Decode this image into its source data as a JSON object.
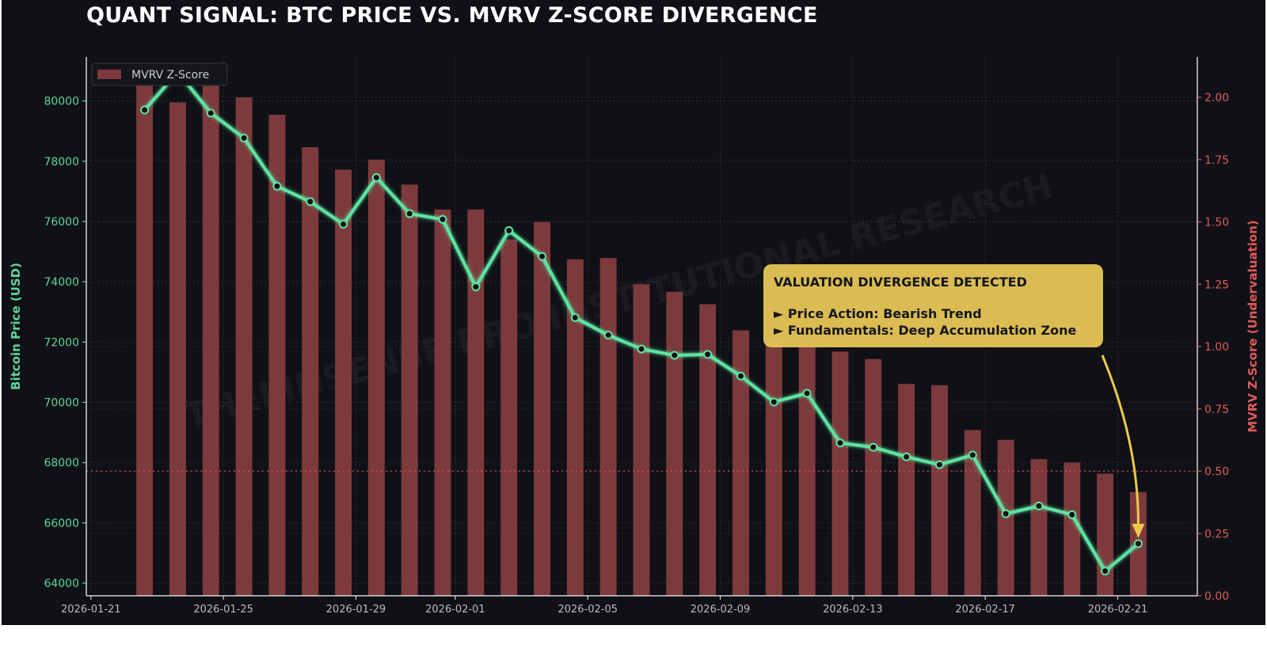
{
  "title": "QUANT SIGNAL: BTC PRICE VS. MVRV Z-SCORE DIVERGENCE",
  "watermark": "THEFINSENSE PRO INSTITUTIONAL RESEARCH",
  "colors": {
    "background": "#101116",
    "price_line": "#5fe3a1",
    "bars": "#7d3a3d",
    "left_axis": "#5fd39a",
    "right_axis": "#e05a5a",
    "annotation_bg": "#e2c256",
    "arrow": "#ecc94b",
    "threshold": "#d9534f"
  },
  "chart_data": {
    "type": "bar+line",
    "title": "QUANT SIGNAL: BTC PRICE VS. MVRV Z-SCORE DIVERGENCE",
    "x": [
      "2026-01-22",
      "2026-01-23",
      "2026-01-24",
      "2026-01-25",
      "2026-01-26",
      "2026-01-27",
      "2026-01-28",
      "2026-01-29",
      "2026-01-30",
      "2026-01-31",
      "2026-02-01",
      "2026-02-02",
      "2026-02-03",
      "2026-02-04",
      "2026-02-05",
      "2026-02-06",
      "2026-02-07",
      "2026-02-08",
      "2026-02-09",
      "2026-02-10",
      "2026-02-11",
      "2026-02-12",
      "2026-02-13",
      "2026-02-14",
      "2026-02-15",
      "2026-02-16",
      "2026-02-17",
      "2026-02-18",
      "2026-02-19",
      "2026-02-20",
      "2026-02-21"
    ],
    "x_tick_labels": [
      "2026-01-21",
      "2026-01-25",
      "2026-01-29",
      "2026-02-01",
      "2026-02-05",
      "2026-02-09",
      "2026-02-13",
      "2026-02-17",
      "2026-02-21"
    ],
    "xlim": [
      "2026-01-20T20:40",
      "2026-02-23T09:40"
    ],
    "series": [
      {
        "type": "line",
        "axis": "left",
        "values": [
          79700,
          80960,
          79600,
          78770,
          77170,
          76660,
          75910,
          77460,
          76260,
          76070,
          73830,
          75700,
          74840,
          72810,
          72230,
          71770,
          71560,
          71590,
          70870,
          70010,
          70300,
          68650,
          68510,
          68190,
          67930,
          68250,
          66300,
          66560,
          66270,
          64400,
          65310
        ]
      },
      {
        "type": "bar",
        "axis": "right",
        "name": "MVRV Z-Score",
        "values": [
          2.1,
          1.98,
          2.08,
          2.0,
          1.93,
          1.8,
          1.71,
          1.75,
          1.65,
          1.55,
          1.55,
          1.43,
          1.5,
          1.35,
          1.355,
          1.25,
          1.22,
          1.17,
          1.065,
          1.03,
          1.0,
          0.98,
          0.95,
          0.85,
          0.845,
          0.665,
          0.626,
          0.548,
          0.535,
          0.49,
          0.416
        ]
      }
    ],
    "threshold": {
      "axis": "right",
      "value": 0.5,
      "style": "dotted"
    },
    "y_left": {
      "label": "Bitcoin Price (USD)",
      "ticks": [
        "64000",
        "66000",
        "68000",
        "70000",
        "72000",
        "74000",
        "76000",
        "78000",
        "80000"
      ],
      "ylim": [
        63580,
        81460
      ]
    },
    "y_right": {
      "label": "MVRV Z-Score (Undervaluation)",
      "ticks": [
        "0.00",
        "0.25",
        "0.50",
        "0.75",
        "1.00",
        "1.25",
        "1.50",
        "1.75",
        "2.00"
      ],
      "ylim": [
        0,
        2.162
      ]
    },
    "grid": true,
    "legend": {
      "position": "top-left",
      "entries": [
        "MVRV Z-Score"
      ]
    },
    "annotation": {
      "heading": "VALUATION DIVERGENCE DETECTED",
      "lines": [
        "► Price Action: Bearish Trend",
        "► Fundamentals: Deep Accumulation Zone"
      ],
      "points_to": "2026-02-21"
    }
  }
}
